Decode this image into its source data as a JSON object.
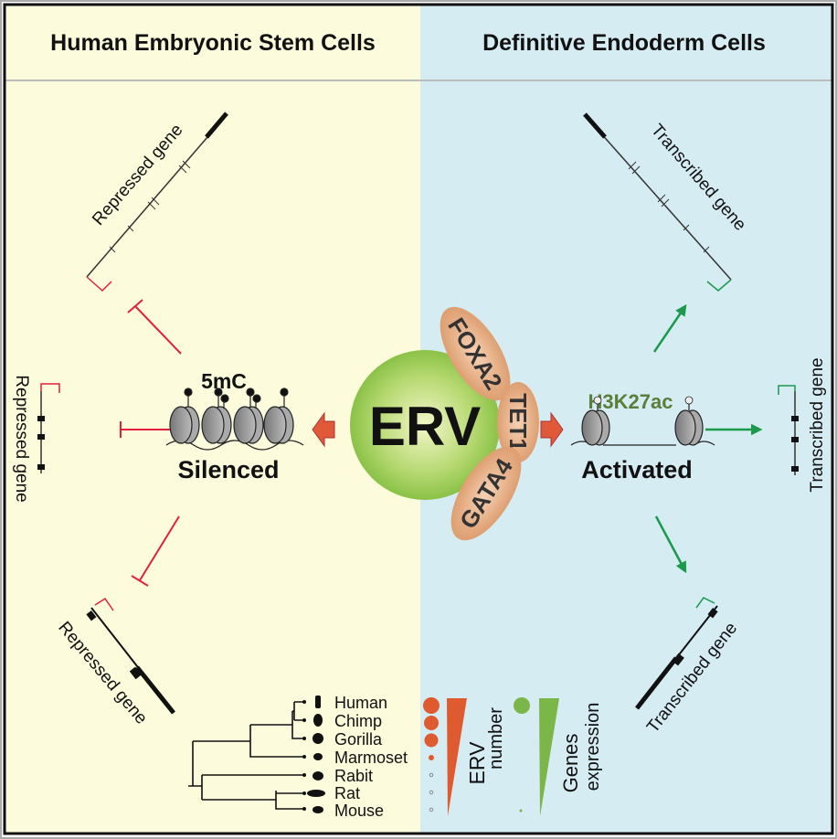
{
  "header": {
    "left_title": "Human Embryonic Stem Cells",
    "right_title": "Definitive Endoderm Cells"
  },
  "left_panel": {
    "gene_label": "Repressed gene",
    "mark_label": "5mC",
    "state_label": "Silenced",
    "color": "#fcfbdc",
    "inhibit_color": "#e0203c"
  },
  "right_panel": {
    "gene_label": "Transcribed gene",
    "mark_label": "H3K27ac",
    "state_label": "Activated",
    "color": "#d5ecf2",
    "arrow_color": "#1a9a4a"
  },
  "center": {
    "erv_label": "ERV",
    "factors": [
      "FOXA2",
      "TET1",
      "GATA4"
    ],
    "erv_color": "#8cc63f",
    "factor_color": "#e8a77d",
    "arrow_color": "#e05a3a"
  },
  "phylogeny": {
    "species": [
      "Human",
      "Chimp",
      "Gorilla",
      "Marmoset",
      "Rabit",
      "Rat",
      "Mouse"
    ],
    "erv_number_label": [
      "ERV",
      "number"
    ],
    "genes_expression_label": [
      "Genes",
      "expression"
    ],
    "erv_color": "#e05a30",
    "expression_color": "#7ab648"
  }
}
